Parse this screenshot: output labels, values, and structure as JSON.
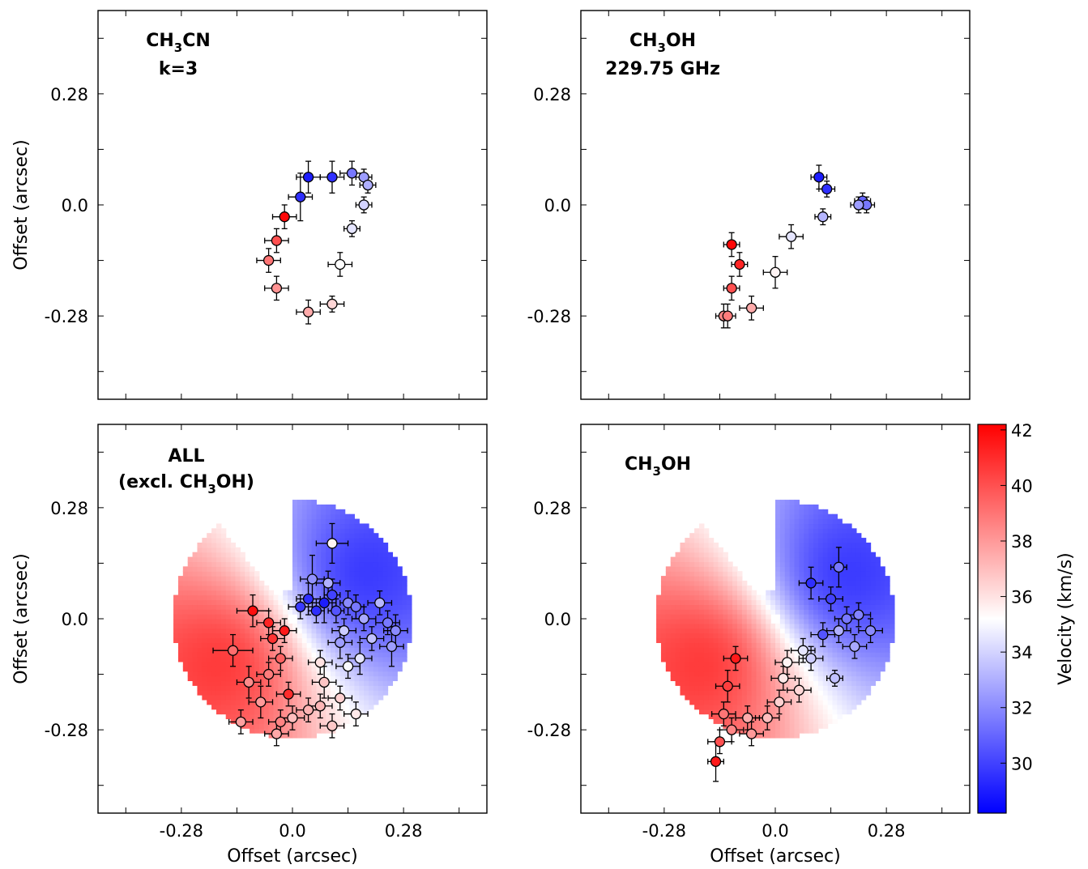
{
  "figure": {
    "colorbar": {
      "label": "Velocity (km/s)",
      "ticks": [
        30,
        32,
        34,
        36,
        38,
        40,
        42
      ],
      "vmin": 28.2,
      "vmax": 42.2
    },
    "colors": {
      "blue": "#0000ff",
      "white": "#ffffff",
      "red": "#ff0000"
    }
  },
  "chart_data": [
    {
      "type": "scatter",
      "title_parts": [
        "CH",
        "3",
        "CN",
        "k=3"
      ],
      "xlabel": "",
      "ylabel": "Offset (arcsec)",
      "xlim": [
        -0.49,
        0.49
      ],
      "ylim": [
        -0.49,
        0.49
      ],
      "xticks": [],
      "yticks": [
        "0.28",
        "0.0",
        "-0.28"
      ],
      "model": false,
      "points": [
        {
          "x": 0.1,
          "y": 0.07,
          "v": 29.5,
          "ex": 0.03,
          "ey": 0.04
        },
        {
          "x": 0.04,
          "y": 0.07,
          "v": 29.0,
          "ex": 0.03,
          "ey": 0.04
        },
        {
          "x": 0.02,
          "y": 0.02,
          "v": 29.5,
          "ex": 0.03,
          "ey": 0.06
        },
        {
          "x": 0.15,
          "y": 0.08,
          "v": 31.5,
          "ex": 0.03,
          "ey": 0.03
        },
        {
          "x": 0.18,
          "y": 0.07,
          "v": 32.5,
          "ex": 0.02,
          "ey": 0.02
        },
        {
          "x": 0.19,
          "y": 0.05,
          "v": 33.0,
          "ex": 0.02,
          "ey": 0.02
        },
        {
          "x": 0.18,
          "y": 0.0,
          "v": 34.0,
          "ex": 0.02,
          "ey": 0.02
        },
        {
          "x": 0.15,
          "y": -0.06,
          "v": 34.5,
          "ex": 0.02,
          "ey": 0.02
        },
        {
          "x": 0.12,
          "y": -0.15,
          "v": 35.2,
          "ex": 0.03,
          "ey": 0.03
        },
        {
          "x": 0.1,
          "y": -0.25,
          "v": 36.3,
          "ex": 0.03,
          "ey": 0.02
        },
        {
          "x": 0.04,
          "y": -0.27,
          "v": 37.5,
          "ex": 0.03,
          "ey": 0.03
        },
        {
          "x": -0.02,
          "y": -0.03,
          "v": 42.0,
          "ex": 0.03,
          "ey": 0.03
        },
        {
          "x": -0.04,
          "y": -0.09,
          "v": 40.0,
          "ex": 0.03,
          "ey": 0.03
        },
        {
          "x": -0.06,
          "y": -0.14,
          "v": 39.0,
          "ex": 0.03,
          "ey": 0.03
        },
        {
          "x": -0.04,
          "y": -0.21,
          "v": 38.2,
          "ex": 0.03,
          "ey": 0.03
        }
      ]
    },
    {
      "type": "scatter",
      "title_parts": [
        "CH",
        "3",
        "OH",
        "229.75 GHz"
      ],
      "xlabel": "",
      "ylabel": "",
      "xlim": [
        -0.49,
        0.49
      ],
      "ylim": [
        -0.49,
        0.49
      ],
      "xticks": [],
      "yticks": [
        "0.28",
        "0.0",
        "-0.28"
      ],
      "model": false,
      "points": [
        {
          "x": 0.11,
          "y": 0.07,
          "v": 29.0,
          "ex": 0.02,
          "ey": 0.03
        },
        {
          "x": 0.13,
          "y": 0.04,
          "v": 29.5,
          "ex": 0.02,
          "ey": 0.02
        },
        {
          "x": 0.22,
          "y": 0.01,
          "v": 31.0,
          "ex": 0.02,
          "ey": 0.02
        },
        {
          "x": 0.23,
          "y": 0.0,
          "v": 31.5,
          "ex": 0.02,
          "ey": 0.02
        },
        {
          "x": 0.21,
          "y": 0.0,
          "v": 32.5,
          "ex": 0.02,
          "ey": 0.02
        },
        {
          "x": 0.12,
          "y": -0.03,
          "v": 33.2,
          "ex": 0.02,
          "ey": 0.02
        },
        {
          "x": 0.04,
          "y": -0.08,
          "v": 34.5,
          "ex": 0.03,
          "ey": 0.03
        },
        {
          "x": 0.0,
          "y": -0.17,
          "v": 35.5,
          "ex": 0.03,
          "ey": 0.04
        },
        {
          "x": -0.06,
          "y": -0.26,
          "v": 37.5,
          "ex": 0.03,
          "ey": 0.03
        },
        {
          "x": -0.11,
          "y": -0.1,
          "v": 42.0,
          "ex": 0.02,
          "ey": 0.03
        },
        {
          "x": -0.09,
          "y": -0.15,
          "v": 41.2,
          "ex": 0.02,
          "ey": 0.03
        },
        {
          "x": -0.11,
          "y": -0.21,
          "v": 40.0,
          "ex": 0.02,
          "ey": 0.03
        },
        {
          "x": -0.13,
          "y": -0.28,
          "v": 38.5,
          "ex": 0.02,
          "ey": 0.03
        },
        {
          "x": -0.12,
          "y": -0.28,
          "v": 38.8,
          "ex": 0.02,
          "ey": 0.03
        }
      ]
    },
    {
      "type": "scatter",
      "title_parts": [
        "ALL",
        "(excl. CH",
        "3",
        "OH)"
      ],
      "xlabel": "Offset (arcsec)",
      "ylabel": "Offset (arcsec)",
      "xlim": [
        -0.49,
        0.49
      ],
      "ylim": [
        -0.49,
        0.49
      ],
      "xticks": [
        "-0.28",
        "0.0",
        "0.28"
      ],
      "yticks": [
        "0.28",
        "0.0",
        "-0.28"
      ],
      "model": true,
      "points": [
        {
          "x": 0.04,
          "y": 0.05,
          "v": 29.5,
          "ex": 0.03,
          "ey": 0.04
        },
        {
          "x": 0.08,
          "y": 0.04,
          "v": 29.0,
          "ex": 0.03,
          "ey": 0.05
        },
        {
          "x": 0.1,
          "y": 0.06,
          "v": 30.0,
          "ex": 0.02,
          "ey": 0.04
        },
        {
          "x": 0.06,
          "y": 0.02,
          "v": 29.5,
          "ex": 0.02,
          "ey": 0.03
        },
        {
          "x": 0.11,
          "y": 0.02,
          "v": 30.5,
          "ex": 0.02,
          "ey": 0.03
        },
        {
          "x": 0.02,
          "y": 0.03,
          "v": 29.8,
          "ex": 0.03,
          "ey": 0.03
        },
        {
          "x": 0.05,
          "y": 0.1,
          "v": 32.2,
          "ex": 0.03,
          "ey": 0.06
        },
        {
          "x": 0.09,
          "y": 0.09,
          "v": 33.0,
          "ex": 0.03,
          "ey": 0.03
        },
        {
          "x": 0.1,
          "y": 0.19,
          "v": 35.5,
          "ex": 0.04,
          "ey": 0.05
        },
        {
          "x": 0.14,
          "y": 0.04,
          "v": 32.0,
          "ex": 0.02,
          "ey": 0.03
        },
        {
          "x": 0.16,
          "y": 0.03,
          "v": 31.5,
          "ex": 0.02,
          "ey": 0.03
        },
        {
          "x": 0.18,
          "y": 0.0,
          "v": 32.8,
          "ex": 0.03,
          "ey": 0.03
        },
        {
          "x": 0.22,
          "y": 0.04,
          "v": 33.2,
          "ex": 0.03,
          "ey": 0.03
        },
        {
          "x": 0.24,
          "y": -0.01,
          "v": 31.5,
          "ex": 0.03,
          "ey": 0.03
        },
        {
          "x": 0.26,
          "y": -0.03,
          "v": 32.0,
          "ex": 0.03,
          "ey": 0.04
        },
        {
          "x": 0.25,
          "y": -0.07,
          "v": 32.5,
          "ex": 0.03,
          "ey": 0.05
        },
        {
          "x": 0.2,
          "y": -0.05,
          "v": 33.5,
          "ex": 0.03,
          "ey": 0.03
        },
        {
          "x": 0.17,
          "y": -0.1,
          "v": 34.5,
          "ex": 0.03,
          "ey": 0.04
        },
        {
          "x": 0.13,
          "y": -0.03,
          "v": 33.8,
          "ex": 0.03,
          "ey": 0.03
        },
        {
          "x": 0.12,
          "y": -0.06,
          "v": 32.5,
          "ex": 0.03,
          "ey": 0.04
        },
        {
          "x": 0.14,
          "y": -0.12,
          "v": 35.0,
          "ex": 0.03,
          "ey": 0.03
        },
        {
          "x": 0.07,
          "y": -0.11,
          "v": 36.0,
          "ex": 0.03,
          "ey": 0.03
        },
        {
          "x": 0.08,
          "y": -0.16,
          "v": 36.8,
          "ex": 0.03,
          "ey": 0.04
        },
        {
          "x": 0.12,
          "y": -0.2,
          "v": 36.5,
          "ex": 0.03,
          "ey": 0.03
        },
        {
          "x": 0.16,
          "y": -0.24,
          "v": 35.8,
          "ex": 0.03,
          "ey": 0.03
        },
        {
          "x": 0.1,
          "y": -0.27,
          "v": 36.7,
          "ex": 0.03,
          "ey": 0.03
        },
        {
          "x": 0.04,
          "y": -0.23,
          "v": 37.3,
          "ex": 0.03,
          "ey": 0.03
        },
        {
          "x": -0.01,
          "y": -0.19,
          "v": 41.0,
          "ex": 0.03,
          "ey": 0.03
        },
        {
          "x": -0.03,
          "y": -0.26,
          "v": 38.6,
          "ex": 0.03,
          "ey": 0.03
        },
        {
          "x": -0.08,
          "y": -0.21,
          "v": 38.0,
          "ex": 0.03,
          "ey": 0.04
        },
        {
          "x": -0.11,
          "y": -0.16,
          "v": 38.4,
          "ex": 0.03,
          "ey": 0.04
        },
        {
          "x": -0.15,
          "y": -0.08,
          "v": 39.2,
          "ex": 0.05,
          "ey": 0.04
        },
        {
          "x": -0.1,
          "y": 0.02,
          "v": 41.8,
          "ex": 0.04,
          "ey": 0.04
        },
        {
          "x": -0.06,
          "y": -0.01,
          "v": 41.2,
          "ex": 0.03,
          "ey": 0.03
        },
        {
          "x": -0.05,
          "y": -0.05,
          "v": 40.8,
          "ex": 0.03,
          "ey": 0.03
        },
        {
          "x": -0.02,
          "y": -0.03,
          "v": 41.5,
          "ex": 0.03,
          "ey": 0.03
        },
        {
          "x": -0.03,
          "y": -0.1,
          "v": 39.5,
          "ex": 0.03,
          "ey": 0.03
        },
        {
          "x": -0.06,
          "y": -0.14,
          "v": 38.8,
          "ex": 0.03,
          "ey": 0.03
        },
        {
          "x": -0.13,
          "y": -0.26,
          "v": 37.8,
          "ex": 0.03,
          "ey": 0.03
        },
        {
          "x": -0.04,
          "y": -0.29,
          "v": 37.6,
          "ex": 0.03,
          "ey": 0.03
        },
        {
          "x": 0.0,
          "y": -0.25,
          "v": 37.0,
          "ex": 0.03,
          "ey": 0.03
        },
        {
          "x": 0.07,
          "y": -0.22,
          "v": 37.2,
          "ex": 0.03,
          "ey": 0.03
        }
      ]
    },
    {
      "type": "scatter",
      "title_parts": [
        "CH",
        "3",
        "OH"
      ],
      "xlabel": "Offset (arcsec)",
      "ylabel": "",
      "xlim": [
        -0.49,
        0.49
      ],
      "ylim": [
        -0.49,
        0.49
      ],
      "xticks": [
        "-0.28",
        "0.0",
        "0.28"
      ],
      "yticks": [
        "0.28",
        "0.0",
        "-0.28"
      ],
      "model": true,
      "points": [
        {
          "x": 0.09,
          "y": 0.09,
          "v": 29.5,
          "ex": 0.03,
          "ey": 0.04
        },
        {
          "x": 0.14,
          "y": 0.05,
          "v": 30.0,
          "ex": 0.03,
          "ey": 0.03
        },
        {
          "x": 0.16,
          "y": 0.13,
          "v": 31.5,
          "ex": 0.02,
          "ey": 0.05
        },
        {
          "x": 0.12,
          "y": -0.04,
          "v": 30.5,
          "ex": 0.03,
          "ey": 0.03
        },
        {
          "x": 0.18,
          "y": 0.0,
          "v": 31.5,
          "ex": 0.03,
          "ey": 0.03
        },
        {
          "x": 0.21,
          "y": 0.01,
          "v": 31.8,
          "ex": 0.03,
          "ey": 0.03
        },
        {
          "x": 0.24,
          "y": -0.03,
          "v": 32.0,
          "ex": 0.03,
          "ey": 0.03
        },
        {
          "x": 0.2,
          "y": -0.07,
          "v": 32.8,
          "ex": 0.03,
          "ey": 0.03
        },
        {
          "x": 0.16,
          "y": -0.03,
          "v": 33.0,
          "ex": 0.03,
          "ey": 0.03
        },
        {
          "x": 0.15,
          "y": -0.15,
          "v": 33.5,
          "ex": 0.02,
          "ey": 0.02
        },
        {
          "x": 0.09,
          "y": -0.1,
          "v": 33.8,
          "ex": 0.03,
          "ey": 0.03
        },
        {
          "x": 0.07,
          "y": -0.08,
          "v": 34.5,
          "ex": 0.03,
          "ey": 0.03
        },
        {
          "x": 0.03,
          "y": -0.11,
          "v": 35.5,
          "ex": 0.03,
          "ey": 0.03
        },
        {
          "x": 0.02,
          "y": -0.15,
          "v": 35.8,
          "ex": 0.03,
          "ey": 0.03
        },
        {
          "x": 0.06,
          "y": -0.18,
          "v": 36.3,
          "ex": 0.03,
          "ey": 0.03
        },
        {
          "x": 0.01,
          "y": -0.21,
          "v": 36.5,
          "ex": 0.03,
          "ey": 0.03
        },
        {
          "x": -0.02,
          "y": -0.25,
          "v": 37.0,
          "ex": 0.03,
          "ey": 0.03
        },
        {
          "x": -0.07,
          "y": -0.25,
          "v": 37.5,
          "ex": 0.03,
          "ey": 0.03
        },
        {
          "x": -0.1,
          "y": -0.1,
          "v": 41.5,
          "ex": 0.03,
          "ey": 0.03
        },
        {
          "x": -0.12,
          "y": -0.17,
          "v": 40.5,
          "ex": 0.03,
          "ey": 0.04
        },
        {
          "x": -0.13,
          "y": -0.24,
          "v": 39.0,
          "ex": 0.03,
          "ey": 0.03
        },
        {
          "x": -0.11,
          "y": -0.28,
          "v": 38.5,
          "ex": 0.03,
          "ey": 0.03
        },
        {
          "x": -0.14,
          "y": -0.31,
          "v": 40.0,
          "ex": 0.03,
          "ey": 0.03
        },
        {
          "x": -0.15,
          "y": -0.36,
          "v": 41.5,
          "ex": 0.02,
          "ey": 0.05
        },
        {
          "x": -0.06,
          "y": -0.29,
          "v": 38.0,
          "ex": 0.03,
          "ey": 0.03
        }
      ]
    }
  ]
}
